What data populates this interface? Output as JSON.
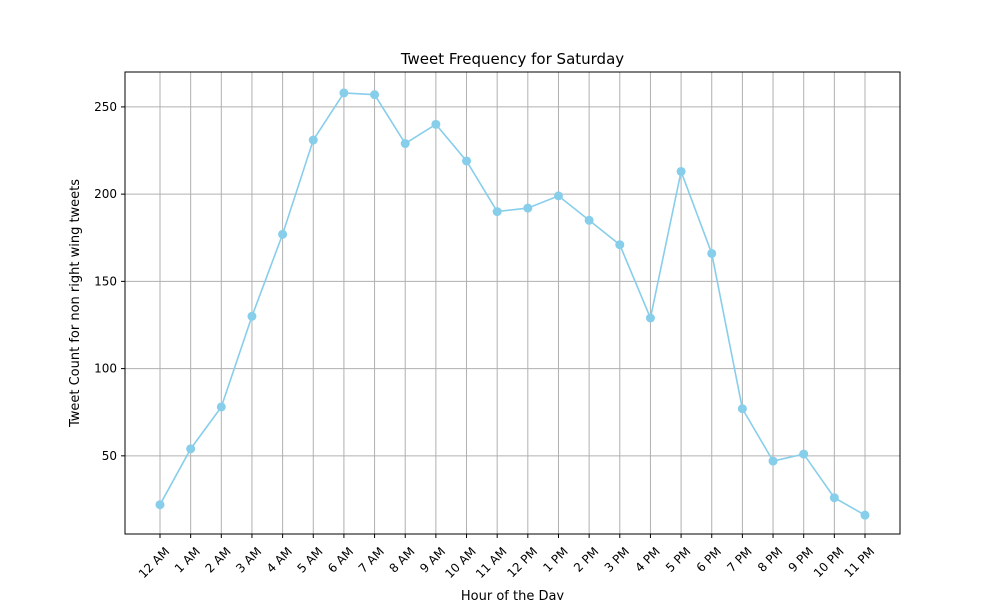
{
  "chart_data": {
    "type": "line",
    "title": "Tweet Frequency for Saturday",
    "xlabel": "Hour of the Day",
    "ylabel": "Tweet Count for non right wing tweets",
    "categories": [
      "12 AM",
      "1 AM",
      "2 AM",
      "3 AM",
      "4 AM",
      "5 AM",
      "6 AM",
      "7 AM",
      "8 AM",
      "9 AM",
      "10 AM",
      "11 AM",
      "12 PM",
      "1 PM",
      "2 PM",
      "3 PM",
      "4 PM",
      "5 PM",
      "6 PM",
      "7 PM",
      "8 PM",
      "9 PM",
      "10 PM",
      "11 PM"
    ],
    "series": [
      {
        "values": [
          22,
          54,
          78,
          130,
          177,
          231,
          258,
          257,
          229,
          240,
          219,
          190,
          192,
          199,
          185,
          171,
          129,
          213,
          166,
          77,
          47,
          51,
          26,
          16
        ]
      }
    ],
    "ylim": [
      5.2,
      270
    ],
    "yticks": [
      50,
      100,
      150,
      200,
      250
    ],
    "grid": true,
    "line_color": "#87CEEB",
    "marker": "circle"
  }
}
